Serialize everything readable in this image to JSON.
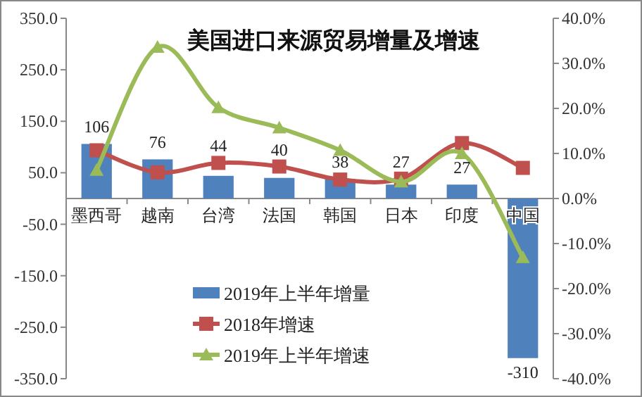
{
  "chart_data": {
    "type": "bar",
    "title": "美国进口来源贸易增量及增速",
    "categories": [
      "墨西哥",
      "越南",
      "台湾",
      "法国",
      "韩国",
      "日本",
      "印度",
      "中国"
    ],
    "series": [
      {
        "name": "2019年上半年增量",
        "color": "#4f81bd",
        "values": [
          106,
          76,
          44,
          40,
          38,
          27,
          27,
          -310
        ],
        "value_labels": [
          "106",
          "76",
          "44",
          "40",
          "38",
          "27",
          "27",
          "-310"
        ]
      },
      {
        "name": "2018年增速",
        "type": "line",
        "axis": "y2",
        "marker": "square",
        "color": "#c0504d",
        "values": [
          10.7,
          5.8,
          7.9,
          7.1,
          4.2,
          4.4,
          12.3,
          6.8
        ]
      },
      {
        "name": "2019年上半年增速",
        "type": "line",
        "axis": "y2",
        "marker": "triangle",
        "color": "#9bbb59",
        "values": [
          6.3,
          33.6,
          20.2,
          15.7,
          10.7,
          3.7,
          10.0,
          -13.1
        ]
      }
    ],
    "ylim": [
      -350,
      350
    ],
    "yticks": [
      {
        "value": 350,
        "label": "350.0"
      },
      {
        "value": 250,
        "label": "250.0"
      },
      {
        "value": 150,
        "label": "150.0"
      },
      {
        "value": 50,
        "label": "50.0"
      },
      {
        "value": -50,
        "label": "-50.0"
      },
      {
        "value": -150,
        "label": "-150.0"
      },
      {
        "value": -250,
        "label": "-250.0"
      },
      {
        "value": -350,
        "label": "-350.0"
      }
    ],
    "y2lim": [
      -40,
      40
    ],
    "y2ticks": [
      {
        "value": 40,
        "label": "40.0%"
      },
      {
        "value": 30,
        "label": "30.0%"
      },
      {
        "value": 20,
        "label": "20.0%"
      },
      {
        "value": 10,
        "label": "10.0%"
      },
      {
        "value": 0,
        "label": "0.0%"
      },
      {
        "value": -10,
        "label": "-10.0%"
      },
      {
        "value": -20,
        "label": "-20.0%"
      },
      {
        "value": -30,
        "label": "-30.0%"
      },
      {
        "value": -40,
        "label": "-40.0%"
      }
    ],
    "legend": "bottom",
    "grid": false
  }
}
